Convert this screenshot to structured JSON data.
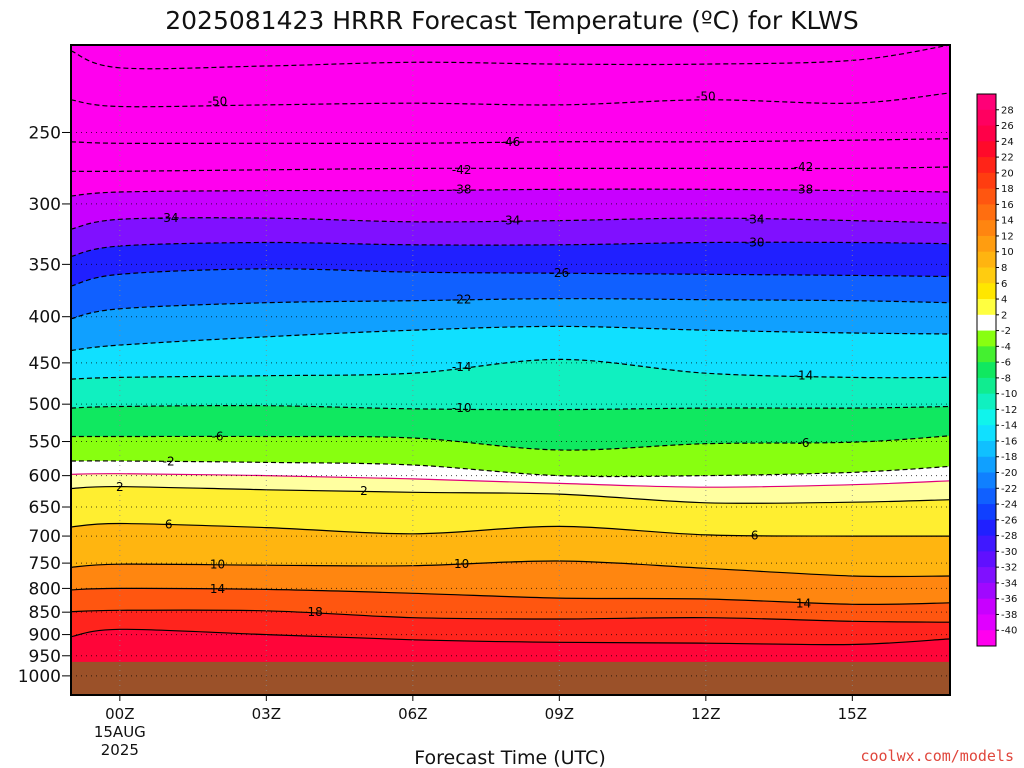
{
  "chart_data": {
    "type": "heatmap",
    "title": "2025081423 HRRR Forecast Temperature (ºC) for KLWS",
    "xlabel": "Forecast Time (UTC)",
    "credit": "coolwx.com/models",
    "x_ticks": [
      {
        "hour": 0,
        "label": "00Z",
        "sub1": "15AUG",
        "sub2": "2025"
      },
      {
        "hour": 3,
        "label": "03Z",
        "sub1": "",
        "sub2": ""
      },
      {
        "hour": 6,
        "label": "06Z",
        "sub1": "",
        "sub2": ""
      },
      {
        "hour": 9,
        "label": "09Z",
        "sub1": "",
        "sub2": ""
      },
      {
        "hour": 12,
        "label": "12Z",
        "sub1": "",
        "sub2": ""
      },
      {
        "hour": 15,
        "label": "15Z",
        "sub1": "",
        "sub2": ""
      }
    ],
    "xlim": [
      -1,
      17
    ],
    "ylim": [
      1050,
      200
    ],
    "y_scale": "log-pressure",
    "y_ticks": [
      250,
      300,
      350,
      400,
      450,
      500,
      550,
      600,
      650,
      700,
      750,
      800,
      850,
      900,
      950,
      1000
    ],
    "surface_pressure": 965,
    "below_ground_color": "#9b5129",
    "grid": "dotted, at every tick",
    "colorbar": {
      "labels": [
        "28",
        "26",
        "24",
        "22",
        "20",
        "18",
        "16",
        "14",
        "12",
        "10",
        "8",
        "6",
        "4",
        "2",
        "-2",
        "-4",
        "-6",
        "-8",
        "-10",
        "-12",
        "-14",
        "-16",
        "-18",
        "-20",
        "-22",
        "-24",
        "-26",
        "-28",
        "-30",
        "-32",
        "-34",
        "-36",
        "-38",
        "-40"
      ],
      "colors": [
        "#ff0077",
        "#ff0060",
        "#ff0048",
        "#ff0a2a",
        "#ff2418",
        "#ff3d10",
        "#ff5610",
        "#ff6e10",
        "#ff8510",
        "#ff9d10",
        "#ffb410",
        "#ffcc10",
        "#ffe600",
        "#ffff40",
        "#ffffff",
        "#88ff10",
        "#44f030",
        "#10e860",
        "#10ec90",
        "#10f0c0",
        "#10f4ec",
        "#10e0ff",
        "#10c0ff",
        "#10a0ff",
        "#1080ff",
        "#1060ff",
        "#1040ff",
        "#2020ff",
        "#4018ff",
        "#6010ff",
        "#8010ff",
        "#a008ff",
        "#c800ff",
        "#e000ff",
        "#ff00ee"
      ]
    },
    "series": [
      {
        "temp": -54,
        "hours": [
          -1,
          0,
          3,
          6,
          9,
          12,
          15,
          17
        ],
        "pressure": [
          203,
          212,
          211,
          209,
          210,
          210,
          208,
          200
        ]
      },
      {
        "temp": -50,
        "hours": [
          -1,
          0,
          3,
          6,
          9,
          12,
          15,
          17
        ],
        "pressure": [
          230,
          234,
          233,
          232,
          233,
          230,
          232,
          226
        ]
      },
      {
        "temp": -46,
        "hours": [
          -1,
          0,
          3,
          6,
          9,
          12,
          15,
          17
        ],
        "pressure": [
          256,
          257,
          257,
          257,
          256,
          256,
          255,
          254
        ]
      },
      {
        "temp": -42,
        "hours": [
          -1,
          0,
          3,
          6,
          9,
          12,
          15,
          17
        ],
        "pressure": [
          276,
          276,
          275,
          274,
          274,
          274,
          274,
          273
        ]
      },
      {
        "temp": -38,
        "hours": [
          -1,
          0,
          3,
          6,
          9,
          12,
          15,
          17
        ],
        "pressure": [
          294,
          291,
          290,
          290,
          289,
          289,
          290,
          291
        ]
      },
      {
        "temp": -34,
        "hours": [
          -1,
          0,
          3,
          6,
          9,
          12,
          15,
          17
        ],
        "pressure": [
          320,
          312,
          311,
          314,
          313,
          311,
          313,
          315
        ]
      },
      {
        "temp": -30,
        "hours": [
          -1,
          0,
          3,
          6,
          9,
          12,
          15,
          17
        ],
        "pressure": [
          343,
          334,
          331,
          333,
          333,
          331,
          331,
          332
        ]
      },
      {
        "temp": -26,
        "hours": [
          -1,
          0,
          3,
          6,
          9,
          12,
          15,
          17
        ],
        "pressure": [
          370,
          359,
          354,
          357,
          358,
          359,
          360,
          361
        ]
      },
      {
        "temp": -22,
        "hours": [
          -1,
          0,
          3,
          6,
          9,
          12,
          15,
          17
        ],
        "pressure": [
          402,
          392,
          386,
          384,
          382,
          383,
          384,
          386
        ]
      },
      {
        "temp": -18,
        "hours": [
          -1,
          0,
          3,
          6,
          9,
          12,
          15,
          17
        ],
        "pressure": [
          436,
          430,
          421,
          414,
          410,
          414,
          417,
          418
        ]
      },
      {
        "temp": -14,
        "hours": [
          -1,
          0,
          3,
          6,
          9,
          12,
          15,
          17
        ],
        "pressure": [
          469,
          467,
          465,
          462,
          446,
          462,
          467,
          467
        ]
      },
      {
        "temp": -10,
        "hours": [
          -1,
          0,
          3,
          6,
          9,
          12,
          15,
          17
        ],
        "pressure": [
          505,
          503,
          502,
          506,
          507,
          505,
          505,
          503
        ]
      },
      {
        "temp": -6,
        "hours": [
          -1,
          0,
          3,
          6,
          9,
          12,
          15,
          17
        ],
        "pressure": [
          543,
          543,
          543,
          545,
          562,
          553,
          551,
          542
        ]
      },
      {
        "temp": -2,
        "hours": [
          -1,
          0,
          3,
          6,
          9,
          12,
          15,
          17
        ],
        "pressure": [
          578,
          578,
          580,
          584,
          600,
          600,
          595,
          586
        ]
      },
      {
        "temp": 0,
        "hours": [
          -1,
          0,
          3,
          6,
          9,
          12,
          15,
          17
        ],
        "pressure": [
          598,
          597,
          600,
          605,
          612,
          618,
          614,
          608
        ]
      },
      {
        "temp": 2,
        "hours": [
          -1,
          0,
          3,
          6,
          9,
          12,
          15,
          17
        ],
        "pressure": [
          620,
          617,
          622,
          626,
          629,
          643,
          642,
          638
        ]
      },
      {
        "temp": 6,
        "hours": [
          -1,
          0,
          3,
          6,
          9,
          12,
          15,
          17
        ],
        "pressure": [
          684,
          678,
          685,
          696,
          683,
          698,
          700,
          700
        ]
      },
      {
        "temp": 10,
        "hours": [
          -1,
          0,
          3,
          6,
          9,
          12,
          15,
          17
        ],
        "pressure": [
          758,
          752,
          754,
          755,
          746,
          760,
          775,
          775
        ]
      },
      {
        "temp": 14,
        "hours": [
          -1,
          0,
          3,
          6,
          9,
          12,
          15,
          17
        ],
        "pressure": [
          803,
          800,
          802,
          810,
          820,
          822,
          833,
          830
        ]
      },
      {
        "temp": 18,
        "hours": [
          -1,
          0,
          3,
          6,
          9,
          12,
          15,
          17
        ],
        "pressure": [
          849,
          846,
          847,
          862,
          865,
          862,
          870,
          872
        ]
      },
      {
        "temp": 22,
        "hours": [
          -1,
          0,
          3,
          6,
          9,
          12,
          15,
          17
        ],
        "pressure": [
          905,
          888,
          900,
          912,
          918,
          920,
          923,
          910
        ]
      }
    ],
    "contour_labels": [
      {
        "text": "-50",
        "hour": 2,
        "pressure": 231
      },
      {
        "text": "-50",
        "hour": 12,
        "pressure": 228
      },
      {
        "text": "-46",
        "hour": 8,
        "pressure": 256
      },
      {
        "text": "-42",
        "hour": 7,
        "pressure": 275
      },
      {
        "text": "-42",
        "hour": 14,
        "pressure": 273
      },
      {
        "text": "-38",
        "hour": 7,
        "pressure": 289
      },
      {
        "text": "-38",
        "hour": 14,
        "pressure": 289
      },
      {
        "text": "-34",
        "hour": 1,
        "pressure": 311
      },
      {
        "text": "-34",
        "hour": 8,
        "pressure": 313
      },
      {
        "text": "-34",
        "hour": 13,
        "pressure": 312
      },
      {
        "text": "-30",
        "hour": 13,
        "pressure": 331
      },
      {
        "text": "-26",
        "hour": 9,
        "pressure": 358
      },
      {
        "text": "-22",
        "hour": 7,
        "pressure": 383
      },
      {
        "text": "-14",
        "hour": 7,
        "pressure": 455
      },
      {
        "text": "-14",
        "hour": 14,
        "pressure": 465
      },
      {
        "text": "-10",
        "hour": 7,
        "pressure": 505
      },
      {
        "text": "-6",
        "hour": 2,
        "pressure": 543
      },
      {
        "text": "-6",
        "hour": 14,
        "pressure": 552
      },
      {
        "text": "-2",
        "hour": 1,
        "pressure": 579
      },
      {
        "text": "2",
        "hour": 0,
        "pressure": 618
      },
      {
        "text": "2",
        "hour": 5,
        "pressure": 624
      },
      {
        "text": "6",
        "hour": 1,
        "pressure": 680
      },
      {
        "text": "6",
        "hour": 13,
        "pressure": 699
      },
      {
        "text": "10",
        "hour": 2,
        "pressure": 753
      },
      {
        "text": "10",
        "hour": 7,
        "pressure": 752
      },
      {
        "text": "14",
        "hour": 2,
        "pressure": 801
      },
      {
        "text": "14",
        "hour": 14,
        "pressure": 831
      },
      {
        "text": "18",
        "hour": 4,
        "pressure": 850
      }
    ]
  }
}
